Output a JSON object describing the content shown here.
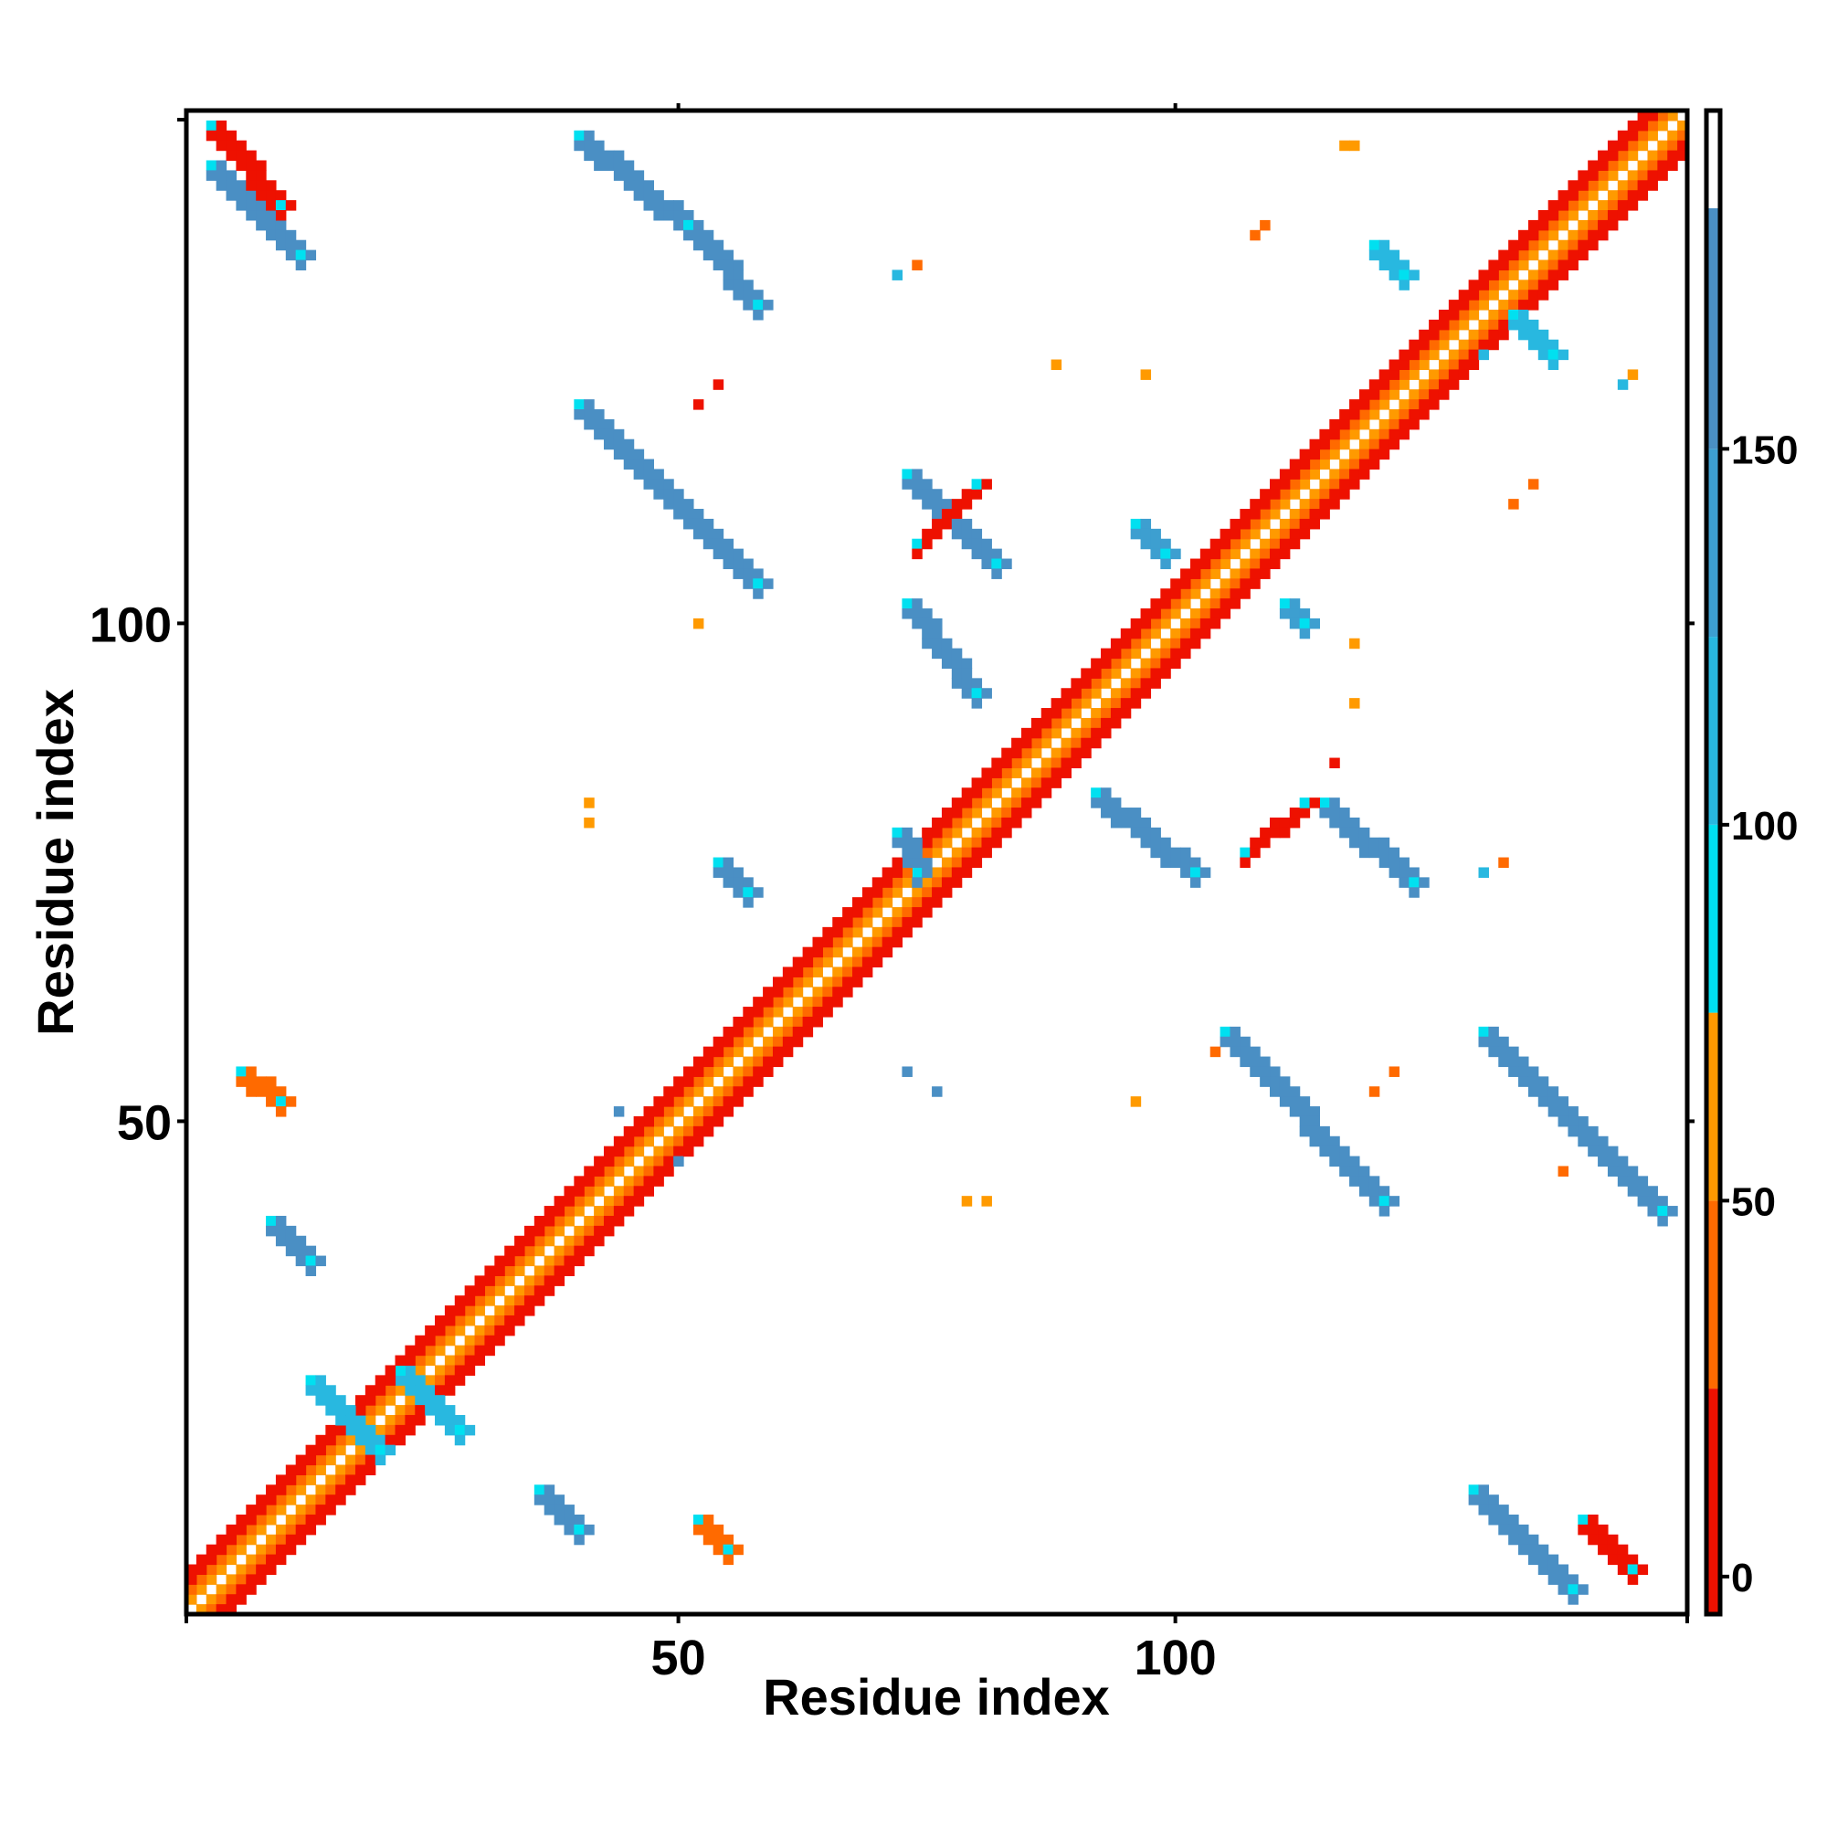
{
  "chart_data": {
    "type": "heatmap",
    "title": "",
    "xlabel": "Residue index",
    "ylabel": "Residue index",
    "xlim": [
      1,
      151
    ],
    "ylim": [
      1,
      151
    ],
    "x_ticks": [
      50,
      100
    ],
    "y_ticks": [
      50,
      100
    ],
    "colorbar": {
      "ticks": [
        0,
        50,
        100,
        150
      ],
      "range": [
        -5,
        195
      ],
      "bands": [
        {
          "from": -5,
          "to": 25,
          "color": "#ee1100"
        },
        {
          "from": 25,
          "to": 50,
          "color": "#ff6a00"
        },
        {
          "from": 50,
          "to": 75,
          "color": "#ff9a00"
        },
        {
          "from": 75,
          "to": 100,
          "color": "#00e0f0"
        },
        {
          "from": 100,
          "to": 125,
          "color": "#28b8e0"
        },
        {
          "from": 125,
          "to": 150,
          "color": "#3d9fd0"
        },
        {
          "from": 150,
          "to": 182,
          "color": "#4a8fc4"
        },
        {
          "from": 182,
          "to": 195,
          "color": "#ffffff"
        }
      ]
    },
    "diagonal_contacts": [
      {
        "offset": 1,
        "value": 55
      },
      {
        "offset": 2,
        "value": 40
      },
      {
        "offset": 3,
        "value": 10
      },
      {
        "offset": 4,
        "value": 0
      }
    ],
    "segments": [
      {
        "i0": 3,
        "j0": 146,
        "i1": 12,
        "j1": 137,
        "value": 170
      },
      {
        "i0": 40,
        "j0": 149,
        "i1": 51,
        "j1": 140,
        "value": 170
      },
      {
        "i0": 51,
        "j0": 140,
        "i1": 58,
        "j1": 132,
        "value": 170
      },
      {
        "i0": 40,
        "j0": 122,
        "i1": 58,
        "j1": 104,
        "value": 170
      },
      {
        "i0": 73,
        "j0": 115,
        "i1": 82,
        "j1": 106,
        "value": 165
      },
      {
        "i0": 73,
        "j0": 102,
        "i1": 80,
        "j1": 93,
        "value": 165
      },
      {
        "i0": 92,
        "j0": 83,
        "i1": 102,
        "j1": 75,
        "value": 165
      },
      {
        "i0": 115,
        "j0": 82,
        "i1": 124,
        "j1": 74,
        "value": 165
      },
      {
        "i0": 105,
        "j0": 59,
        "i1": 121,
        "j1": 42,
        "value": 170
      },
      {
        "i0": 131,
        "j0": 59,
        "i1": 149,
        "j1": 41,
        "value": 170
      },
      {
        "i0": 130,
        "j0": 13,
        "i1": 140,
        "j1": 3,
        "value": 170
      },
      {
        "i0": 22,
        "j0": 25,
        "i1": 28,
        "j1": 19,
        "value": 120
      },
      {
        "i0": 13,
        "j0": 24,
        "i1": 20,
        "j1": 17,
        "value": 120
      },
      {
        "i0": 36,
        "j0": 13,
        "i1": 40,
        "j1": 9,
        "value": 150
      },
      {
        "i0": 9,
        "j0": 40,
        "i1": 13,
        "j1": 36,
        "value": 150
      },
      {
        "i0": 52,
        "j0": 10,
        "i1": 55,
        "j1": 7,
        "value": 40
      },
      {
        "i0": 6,
        "j0": 55,
        "i1": 10,
        "j1": 52,
        "value": 40
      },
      {
        "i0": 141,
        "j0": 10,
        "i1": 146,
        "j1": 5,
        "value": 10
      },
      {
        "i0": 3,
        "j0": 150,
        "i1": 10,
        "j1": 142,
        "value": 10
      },
      {
        "i0": 107,
        "j0": 77,
        "i1": 113,
        "j1": 82,
        "value": 20
      },
      {
        "i0": 74,
        "j0": 108,
        "i1": 80,
        "j1": 114,
        "value": 20
      },
      {
        "i0": 72,
        "j0": 79,
        "i1": 74,
        "j1": 75,
        "value": 150
      },
      {
        "i0": 54,
        "j0": 76,
        "i1": 57,
        "j1": 73,
        "value": 150
      },
      {
        "i0": 111,
        "j0": 102,
        "i1": 113,
        "j1": 100,
        "value": 140
      },
      {
        "i0": 96,
        "j0": 110,
        "i1": 99,
        "j1": 107,
        "value": 140
      },
      {
        "i0": 134,
        "j0": 131,
        "i1": 138,
        "j1": 127,
        "value": 120
      },
      {
        "i0": 120,
        "j0": 138,
        "i1": 123,
        "j1": 135,
        "value": 120
      }
    ],
    "spots": [
      {
        "i": 117,
        "j": 148,
        "value": 60
      },
      {
        "i": 118,
        "j": 148,
        "value": 60
      },
      {
        "i": 109,
        "j": 140,
        "value": 40
      },
      {
        "i": 108,
        "j": 139,
        "value": 40
      },
      {
        "i": 121,
        "j": 136,
        "value": 110
      },
      {
        "i": 131,
        "j": 127,
        "value": 110
      },
      {
        "i": 146,
        "j": 125,
        "value": 60
      },
      {
        "i": 145,
        "j": 124,
        "value": 110
      },
      {
        "i": 136,
        "j": 114,
        "value": 40
      },
      {
        "i": 134,
        "j": 112,
        "value": 40
      },
      {
        "i": 97,
        "j": 125,
        "value": 60
      },
      {
        "i": 88,
        "j": 126,
        "value": 60
      },
      {
        "i": 54,
        "j": 124,
        "value": 20
      },
      {
        "i": 52,
        "j": 122,
        "value": 20
      },
      {
        "i": 72,
        "j": 135,
        "value": 110
      },
      {
        "i": 74,
        "j": 136,
        "value": 40
      },
      {
        "i": 52,
        "j": 100,
        "value": 60
      },
      {
        "i": 118,
        "j": 98,
        "value": 60
      },
      {
        "i": 118,
        "j": 92,
        "value": 60
      },
      {
        "i": 116,
        "j": 86,
        "value": 20
      },
      {
        "i": 41,
        "j": 82,
        "value": 60
      },
      {
        "i": 41,
        "j": 80,
        "value": 60
      },
      {
        "i": 131,
        "j": 75,
        "value": 110
      },
      {
        "i": 133,
        "j": 76,
        "value": 40
      },
      {
        "i": 96,
        "j": 52,
        "value": 60
      },
      {
        "i": 122,
        "j": 55,
        "value": 40
      },
      {
        "i": 120,
        "j": 53,
        "value": 40
      },
      {
        "i": 139,
        "j": 45,
        "value": 40
      },
      {
        "i": 79,
        "j": 42,
        "value": 60
      },
      {
        "i": 81,
        "j": 42,
        "value": 60
      },
      {
        "i": 73,
        "j": 55,
        "value": 150
      },
      {
        "i": 76,
        "j": 53,
        "value": 150
      },
      {
        "i": 44,
        "j": 51,
        "value": 150
      },
      {
        "i": 50,
        "j": 46,
        "value": 150
      },
      {
        "i": 104,
        "j": 57,
        "value": 40
      }
    ]
  }
}
